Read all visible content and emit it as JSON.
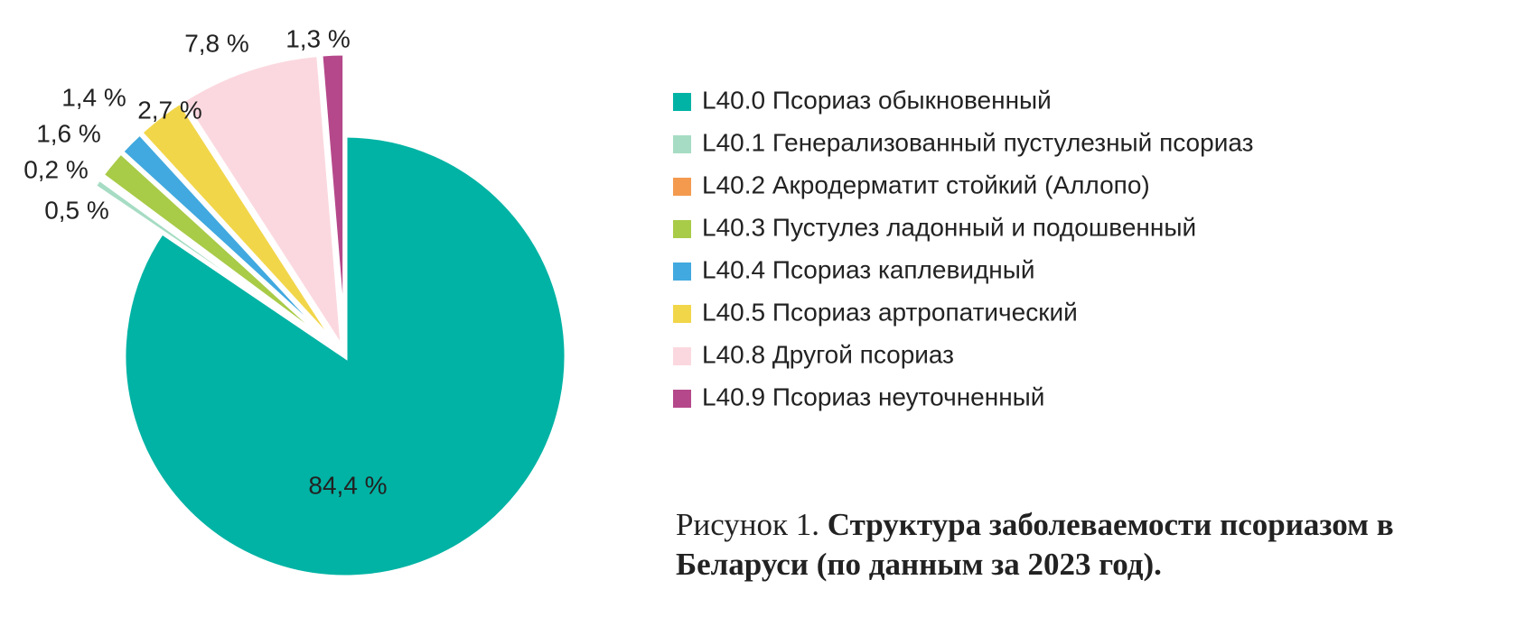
{
  "chart_data": {
    "type": "pie",
    "categories": [
      "L40.0 Псориаз обыкновенный",
      "L40.1 Генерализованный пустулезный псориаз",
      "L40.2 Акродерматит стойкий (Аллопо)",
      "L40.3 Пустулез ладонный и подошвенный",
      "L40.4 Псориаз каплевидный",
      "L40.5 Псориаз артропатический",
      "L40.8 Другой псориаз",
      "L40.9 Псориаз неуточненный"
    ],
    "values": [
      84.4,
      0.5,
      0.2,
      1.6,
      1.4,
      2.7,
      7.8,
      1.3
    ],
    "value_labels": [
      "84,4 %",
      "0,5 %",
      "0,2 %",
      "1,6 %",
      "1,4 %",
      "2,7 %",
      "7,8 %",
      "1,3 %"
    ],
    "colors": [
      "#00b3a4",
      "#a6dcc3",
      "#f39a4f",
      "#a8cb48",
      "#41a9df",
      "#f2d64a",
      "#fbd8df",
      "#b5488a"
    ],
    "caption": {
      "label": "Рисунок 1.",
      "text": "Структура заболеваемости псориазом в Беларуси (по данным за 2023 год)."
    }
  }
}
